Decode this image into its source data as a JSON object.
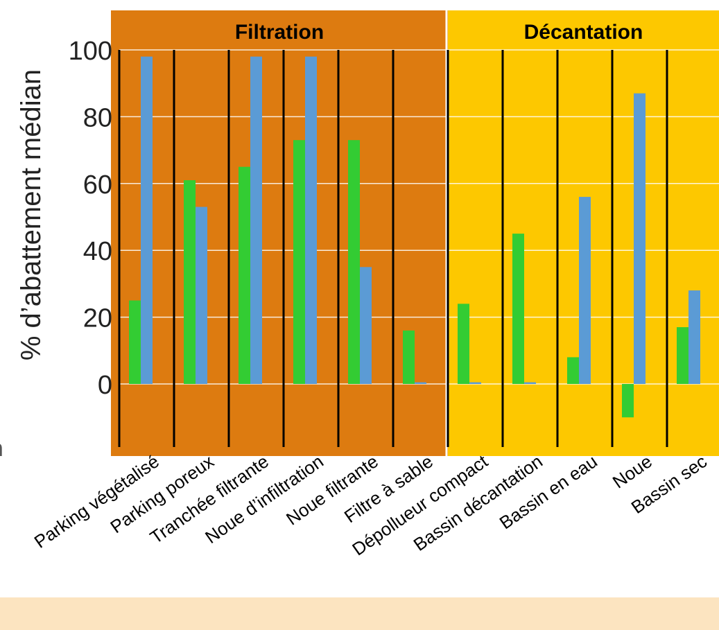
{
  "chart_data": {
    "type": "bar",
    "ylabel": "% d’abattement médian",
    "ylim": [
      -20,
      100
    ],
    "yticks": [
      0,
      20,
      40,
      60,
      80,
      100
    ],
    "grid": true,
    "categories": [
      "Parking végétalisé",
      "Parking poreux",
      "Tranchée filtrante",
      "Noue d’infiltration",
      "Noue filtrante",
      "Filtre à sable",
      "Dépollueur compact",
      "Bassin décantation",
      "Bassin en eau",
      "Noue",
      "Bassin sec"
    ],
    "groups": [
      {
        "label": "Filtration",
        "from": 0,
        "to": 5,
        "color": "#dd7b10"
      },
      {
        "label": "Décantation",
        "from": 6,
        "to": 10,
        "color": "#fdc800"
      }
    ],
    "series": [
      {
        "color": "#33cc33",
        "values": [
          25,
          61,
          65,
          73,
          73,
          16,
          24,
          45,
          8,
          -10,
          17
        ]
      },
      {
        "color": "#5b9bd5",
        "values": [
          98,
          53,
          98,
          98,
          35,
          0.5,
          0.5,
          0.5,
          56,
          87,
          28
        ]
      }
    ]
  },
  "page": {
    "cut_letter": "n"
  }
}
